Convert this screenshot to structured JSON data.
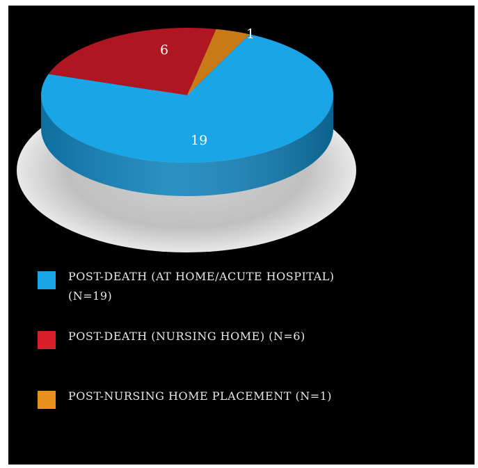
{
  "colors": {
    "background": "#000000"
  },
  "chart_data": {
    "type": "pie",
    "style": "3d",
    "categories": [
      "POST-DEATH (AT HOME/ACUTE HOSPITAL) (N=19)",
      "POST-DEATH (NURSING HOME) (N=6)",
      "POST-NURSING HOME PLACEMENT (N=1)"
    ],
    "values": [
      19,
      6,
      1
    ],
    "slice_labels": [
      "19",
      "6",
      "1"
    ],
    "colors": [
      "#1aa6e6",
      "#b01622",
      "#c97a16"
    ],
    "side_colors": [
      "#0f82bb",
      "#7c0e17",
      "#925812"
    ],
    "legend": {
      "placement": "bottom-left",
      "entries": [
        {
          "text": "POST-DEATH (AT HOME/ACUTE HOSPITAL) (N=19)",
          "color": "#1aa6e6"
        },
        {
          "text": "POST-DEATH (NURSING HOME) (N=6)",
          "color": "#d8202a"
        },
        {
          "text": "POST-NURSING HOME PLACEMENT (N=1)",
          "color": "#e8901c"
        }
      ]
    }
  }
}
